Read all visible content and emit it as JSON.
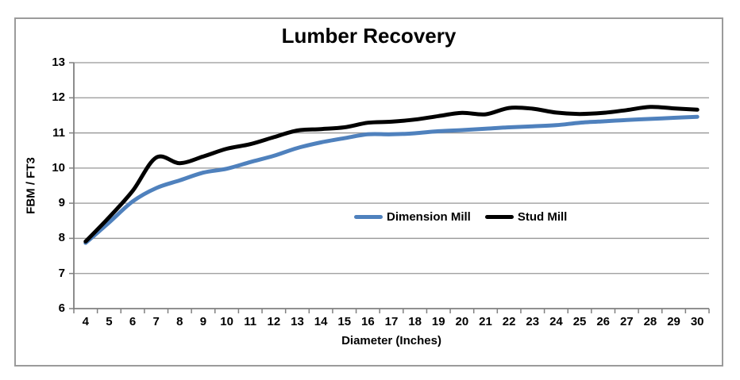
{
  "chart_data": {
    "type": "line",
    "title": "Lumber Recovery",
    "xlabel": "Diameter (Inches)",
    "ylabel": "FBM / FT3",
    "x": [
      4,
      5,
      6,
      7,
      8,
      9,
      10,
      11,
      12,
      13,
      14,
      15,
      16,
      17,
      18,
      19,
      20,
      21,
      22,
      23,
      24,
      25,
      26,
      27,
      28,
      29,
      30
    ],
    "series": [
      {
        "name": "Dimension Mill",
        "color": "#4F81BD",
        "values": [
          7.87,
          8.45,
          9.05,
          9.43,
          9.65,
          9.87,
          9.98,
          10.17,
          10.35,
          10.57,
          10.73,
          10.85,
          10.96,
          10.96,
          10.99,
          11.05,
          11.08,
          11.12,
          11.16,
          11.19,
          11.22,
          11.29,
          11.33,
          11.37,
          11.4,
          11.43,
          11.46
        ]
      },
      {
        "name": "Stud Mill",
        "color": "#000000",
        "values": [
          7.91,
          8.6,
          9.35,
          10.3,
          10.14,
          10.33,
          10.55,
          10.68,
          10.88,
          11.07,
          11.11,
          11.16,
          11.29,
          11.32,
          11.38,
          11.48,
          11.57,
          11.53,
          11.71,
          11.69,
          11.58,
          11.54,
          11.57,
          11.65,
          11.74,
          11.7,
          11.66
        ]
      }
    ],
    "ylim": [
      6,
      13
    ],
    "ytick_step": 1,
    "grid": true,
    "smoothed": true,
    "legend_position": "inside-center",
    "line_width": 5
  },
  "colors": {
    "background": "#ffffff",
    "frame_border": "#9b9b9b",
    "gridline": "#969696",
    "axis": "#808080",
    "text": "#000000"
  }
}
